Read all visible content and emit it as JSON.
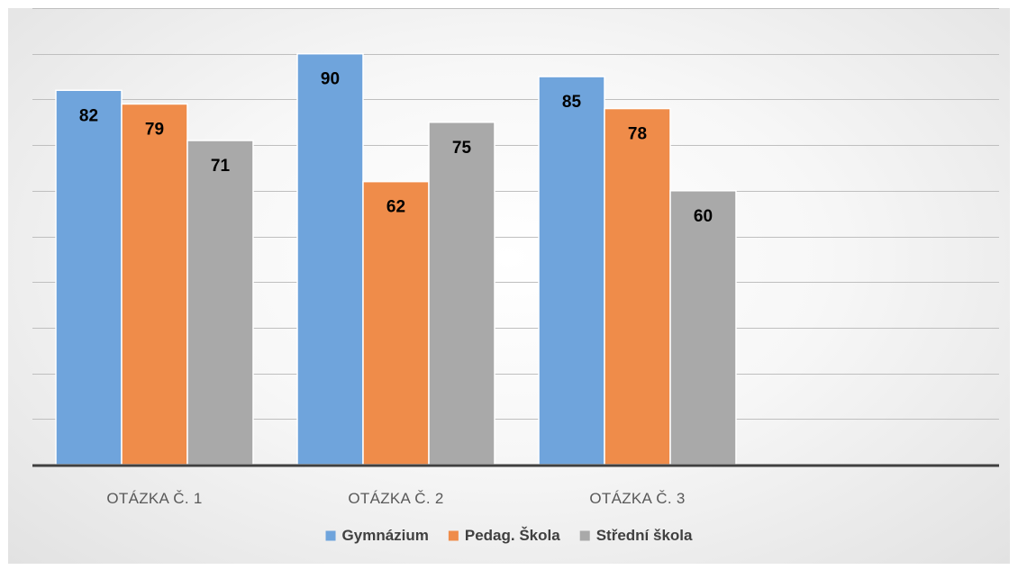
{
  "chart_data": {
    "type": "bar",
    "title": "",
    "xlabel": "",
    "ylabel": "",
    "categories": [
      "OTÁZKA Č. 1",
      "OTÁZKA Č. 2",
      "OTÁZKA Č. 3"
    ],
    "series": [
      {
        "name": "Gymnázium",
        "color": "#6fa4dc",
        "values": [
          82,
          90,
          85
        ]
      },
      {
        "name": "Pedag. Škola",
        "color": "#ef8c4a",
        "values": [
          79,
          62,
          78
        ]
      },
      {
        "name": "Střední škola",
        "color": "#a9a9a9",
        "values": [
          71,
          75,
          60
        ]
      }
    ],
    "ylim": [
      0,
      100
    ],
    "y_gridline_step": 10,
    "y_tick_labels_shown": false,
    "grid": true,
    "legend_position": "bottom",
    "data_labels_position": "inside-end"
  }
}
